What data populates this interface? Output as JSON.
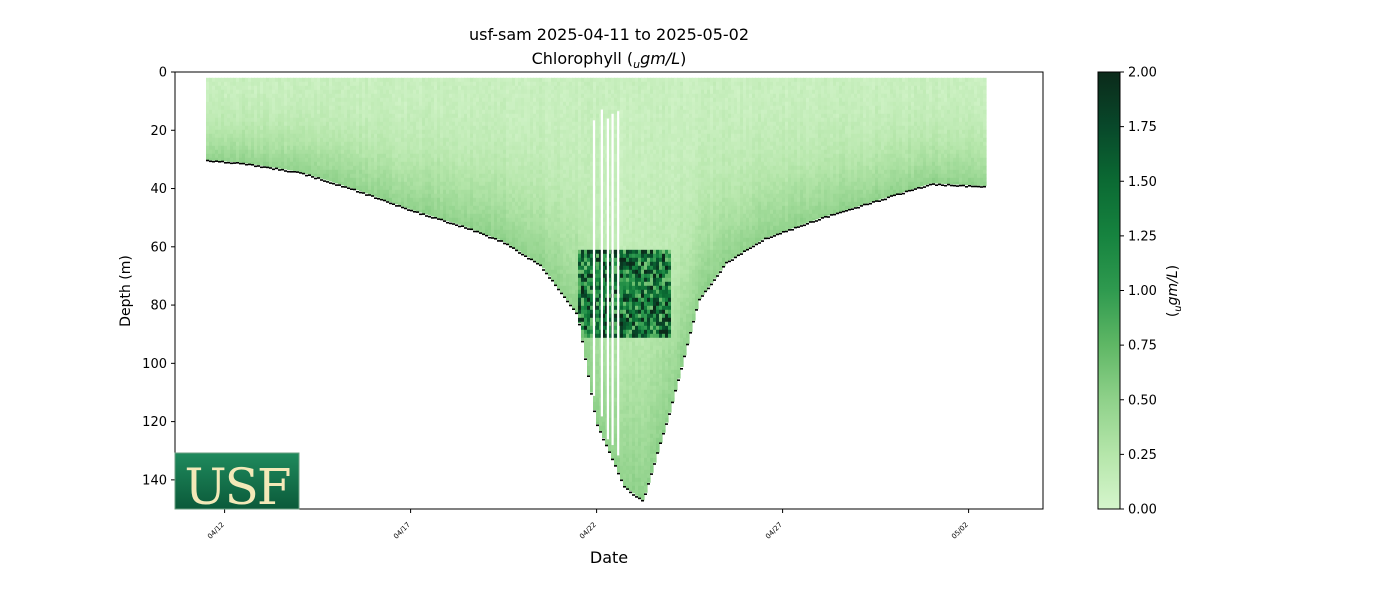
{
  "chart_data": {
    "type": "heatmap",
    "title": "usf-sam 2025-04-11 to 2025-05-02",
    "subtitle_prefix": "Chlorophyll (",
    "subtitle_unit_sub": "u",
    "subtitle_unit_main": "gm/L",
    "subtitle_suffix": ")",
    "xlabel": "Date",
    "ylabel": "Depth (m)",
    "colorbar_label_sub": "u",
    "colorbar_label_main": "gm/L",
    "colorbar_label_open": "(",
    "colorbar_label_close": ")",
    "ylim": [
      150,
      0
    ],
    "y_ticks": [
      0,
      20,
      40,
      60,
      80,
      100,
      120,
      140
    ],
    "x_range_days": [
      "2025-04-10 16:00",
      "2025-05-04 00:00"
    ],
    "x_ticks": [
      {
        "label": "04/12",
        "date": "2025-04-12"
      },
      {
        "label": "04/17",
        "date": "2025-04-17"
      },
      {
        "label": "04/22",
        "date": "2025-04-22"
      },
      {
        "label": "04/27",
        "date": "2025-04-27"
      },
      {
        "label": "05/02",
        "date": "2025-05-02"
      }
    ],
    "colorbar": {
      "range": [
        0.0,
        2.0
      ],
      "ticks": [
        "0.00",
        "0.25",
        "0.50",
        "0.75",
        "1.00",
        "1.25",
        "1.50",
        "1.75",
        "2.00"
      ],
      "colormap": "Greens",
      "colors": [
        "#d5f5cc",
        "#b5e6aa",
        "#8fd18a",
        "#5fb765",
        "#2f9a4f",
        "#16833f",
        "#0b6a33",
        "#08482a",
        "#0b2a1a"
      ]
    },
    "profile": [
      {
        "date": "2025-04-11 12:00",
        "max_depth": 30
      },
      {
        "date": "2025-04-12 12:00",
        "max_depth": 31
      },
      {
        "date": "2025-04-14 00:00",
        "max_depth": 34
      },
      {
        "date": "2025-04-15 12:00",
        "max_depth": 40
      },
      {
        "date": "2025-04-17 00:00",
        "max_depth": 47
      },
      {
        "date": "2025-04-18 12:00",
        "max_depth": 53
      },
      {
        "date": "2025-04-19 12:00",
        "max_depth": 58
      },
      {
        "date": "2025-04-20 12:00",
        "max_depth": 66
      },
      {
        "date": "2025-04-21 12:00",
        "max_depth": 83
      },
      {
        "date": "2025-04-22 00:00",
        "max_depth": 120
      },
      {
        "date": "2025-04-22 18:00",
        "max_depth": 142
      },
      {
        "date": "2025-04-23 06:00",
        "max_depth": 147
      },
      {
        "date": "2025-04-24 00:00",
        "max_depth": 115
      },
      {
        "date": "2025-04-24 18:00",
        "max_depth": 78
      },
      {
        "date": "2025-04-25 12:00",
        "max_depth": 65
      },
      {
        "date": "2025-04-26 12:00",
        "max_depth": 57
      },
      {
        "date": "2025-04-28 00:00",
        "max_depth": 50
      },
      {
        "date": "2025-04-30 00:00",
        "max_depth": 42
      },
      {
        "date": "2025-05-01 00:00",
        "max_depth": 38
      },
      {
        "date": "2025-05-02 12:00",
        "max_depth": 39
      }
    ],
    "chlorophyll_maximum": {
      "depth_range": [
        60,
        90
      ],
      "peak_value": 2.0,
      "dates": [
        "2025-04-21 12:00",
        "2025-04-24 00:00"
      ]
    },
    "surface_value": 0.1,
    "near_bottom_value": 0.5
  },
  "logo": {
    "text": "USF"
  }
}
